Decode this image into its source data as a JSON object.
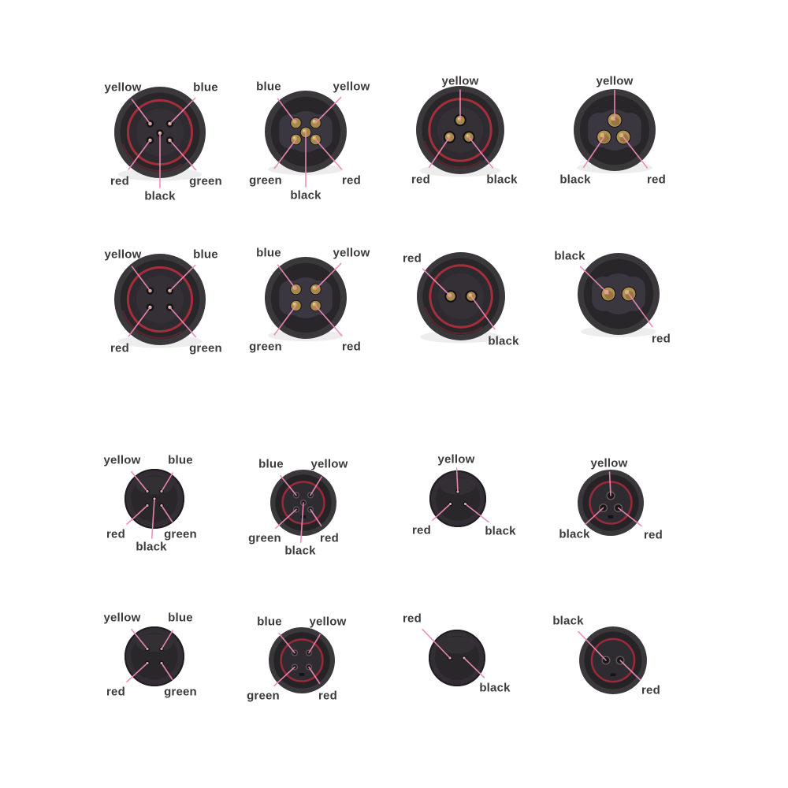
{
  "page": {
    "background": "#ffffff"
  },
  "colors": {
    "body_outer": "#3b383c",
    "body_mid": "#29262a",
    "body_inner": "#343036",
    "insert_female": "#3a3740",
    "ring_red": "#a42f3b",
    "ring_red_faint": "#7e242e",
    "pin_gold": "#a8894c",
    "leader_line": "#ee8ab6",
    "label_text": "#3c3a3b"
  },
  "connectors": [
    {
      "id": "r1c1",
      "name": "5-pin-male-connector-large",
      "type": "male-large",
      "pins": 5,
      "labels": [
        {
          "text": "yellow",
          "role": "TL"
        },
        {
          "text": "blue",
          "role": "TR"
        },
        {
          "text": "red",
          "role": "BL"
        },
        {
          "text": "green",
          "role": "BR"
        },
        {
          "text": "black",
          "role": "BC"
        }
      ]
    },
    {
      "id": "r1c2",
      "name": "5-pin-female-connector-large",
      "type": "female-large",
      "pins": 5,
      "labels": [
        {
          "text": "blue",
          "role": "TL"
        },
        {
          "text": "yellow",
          "role": "TR"
        },
        {
          "text": "green",
          "role": "BL"
        },
        {
          "text": "red",
          "role": "BR"
        },
        {
          "text": "black",
          "role": "BC"
        }
      ]
    },
    {
      "id": "r1c3",
      "name": "3-pin-male-connector-large",
      "type": "male-large",
      "pins": 3,
      "labels": [
        {
          "text": "yellow",
          "role": "TC"
        },
        {
          "text": "red",
          "role": "BL"
        },
        {
          "text": "black",
          "role": "BR"
        }
      ]
    },
    {
      "id": "r1c4",
      "name": "3-pin-female-connector-large",
      "type": "female-large",
      "pins": 3,
      "labels": [
        {
          "text": "yellow",
          "role": "TC"
        },
        {
          "text": "black",
          "role": "BL"
        },
        {
          "text": "red",
          "role": "BR"
        }
      ]
    },
    {
      "id": "r2c1",
      "name": "4-pin-male-connector-large",
      "type": "male-large",
      "pins": 4,
      "labels": [
        {
          "text": "yellow",
          "role": "TL"
        },
        {
          "text": "blue",
          "role": "TR"
        },
        {
          "text": "red",
          "role": "BL"
        },
        {
          "text": "green",
          "role": "BR"
        }
      ]
    },
    {
      "id": "r2c2",
      "name": "4-pin-female-connector-large",
      "type": "female-large",
      "pins": 4,
      "labels": [
        {
          "text": "blue",
          "role": "TL"
        },
        {
          "text": "yellow",
          "role": "TR"
        },
        {
          "text": "green",
          "role": "BL"
        },
        {
          "text": "red",
          "role": "BR"
        }
      ]
    },
    {
      "id": "r2c3",
      "name": "2-pin-male-connector-large",
      "type": "male-large",
      "pins": 2,
      "labels": [
        {
          "text": "red",
          "role": "TL"
        },
        {
          "text": "black",
          "role": "BR"
        }
      ]
    },
    {
      "id": "r2c4",
      "name": "2-pin-female-connector-large",
      "type": "female-large",
      "pins": 2,
      "labels": [
        {
          "text": "black",
          "role": "TL"
        },
        {
          "text": "red",
          "role": "BR"
        }
      ]
    },
    {
      "id": "r3c1",
      "name": "5-pin-connector-small-plain",
      "type": "small-plain",
      "pins": 5,
      "labels": [
        {
          "text": "yellow",
          "role": "TL"
        },
        {
          "text": "blue",
          "role": "TR"
        },
        {
          "text": "red",
          "role": "BL"
        },
        {
          "text": "green",
          "role": "BR"
        },
        {
          "text": "black",
          "role": "BC"
        }
      ]
    },
    {
      "id": "r3c2",
      "name": "5-pin-connector-small-ring",
      "type": "small-ring",
      "pins": 5,
      "labels": [
        {
          "text": "blue",
          "role": "TL"
        },
        {
          "text": "yellow",
          "role": "TR"
        },
        {
          "text": "green",
          "role": "BL"
        },
        {
          "text": "red",
          "role": "BR"
        },
        {
          "text": "black",
          "role": "BC"
        }
      ]
    },
    {
      "id": "r3c3",
      "name": "3-pin-connector-small-plain",
      "type": "small-plain",
      "pins": 3,
      "labels": [
        {
          "text": "yellow",
          "role": "TC"
        },
        {
          "text": "red",
          "role": "BL"
        },
        {
          "text": "black",
          "role": "BR"
        }
      ]
    },
    {
      "id": "r3c4",
      "name": "3-pin-connector-small-ring",
      "type": "small-ring",
      "pins": 3,
      "labels": [
        {
          "text": "yellow",
          "role": "TC"
        },
        {
          "text": "black",
          "role": "BL"
        },
        {
          "text": "red",
          "role": "BR"
        }
      ]
    },
    {
      "id": "r4c1",
      "name": "4-pin-connector-small-plain",
      "type": "small-plain",
      "pins": 4,
      "labels": [
        {
          "text": "yellow",
          "role": "TL"
        },
        {
          "text": "blue",
          "role": "TR"
        },
        {
          "text": "red",
          "role": "BL"
        },
        {
          "text": "green",
          "role": "BR"
        }
      ]
    },
    {
      "id": "r4c2",
      "name": "4-pin-connector-small-ring",
      "type": "small-ring",
      "pins": 4,
      "labels": [
        {
          "text": "blue",
          "role": "TL"
        },
        {
          "text": "yellow",
          "role": "TR"
        },
        {
          "text": "green",
          "role": "BL"
        },
        {
          "text": "red",
          "role": "BR"
        }
      ]
    },
    {
      "id": "r4c3",
      "name": "2-pin-connector-small-plain",
      "type": "small-plain",
      "pins": 2,
      "labels": [
        {
          "text": "red",
          "role": "TL"
        },
        {
          "text": "black",
          "role": "BR"
        }
      ]
    },
    {
      "id": "r4c4",
      "name": "2-pin-connector-small-ring",
      "type": "small-ring",
      "pins": 2,
      "labels": [
        {
          "text": "black",
          "role": "TL"
        },
        {
          "text": "red",
          "role": "BR"
        }
      ]
    }
  ]
}
